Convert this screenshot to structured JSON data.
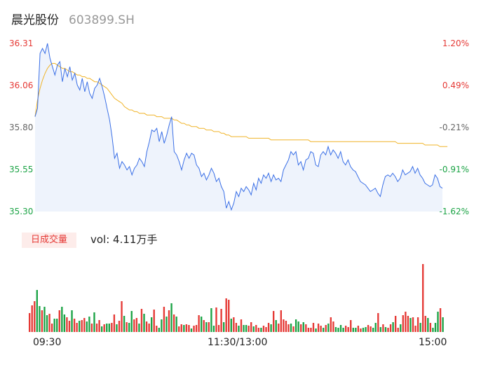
{
  "header": {
    "name": "晨光股份",
    "code": "603899.SH"
  },
  "volume_panel": {
    "tag": "日成交量",
    "label_prefix": "vol: ",
    "value": "4.11万手"
  },
  "colors": {
    "price": "#3a6fe6",
    "avg": "#f0b429",
    "up": "#e53935",
    "down": "#1ba345",
    "axis_up": "#e53935",
    "axis_down": "#1ba345",
    "axis_mid": "#666666"
  },
  "chart_data": {
    "type": "line",
    "x_ticks": [
      "09:30",
      "11:30/13:00",
      "15:00"
    ],
    "price_axis": {
      "ticks": [
        "36.31",
        "36.06",
        "35.80",
        "35.55",
        "35.30"
      ],
      "ylim": [
        35.3,
        36.31
      ]
    },
    "pct_axis": {
      "ticks": [
        "1.20%",
        "0.49%",
        "-0.21%",
        "-0.91%",
        "-1.62%"
      ]
    },
    "series": [
      {
        "values": [
          35.87,
          35.92,
          36.25,
          36.28,
          36.25,
          36.31,
          36.22,
          36.17,
          36.12,
          36.18,
          36.2,
          36.08,
          36.16,
          36.11,
          36.17,
          36.09,
          36.13,
          36.06,
          36.03,
          36.1,
          36.02,
          36.08,
          36.01,
          35.98,
          36.04,
          36.06,
          36.1,
          36.05,
          35.99,
          35.92,
          35.85,
          35.75,
          35.62,
          35.65,
          35.56,
          35.6,
          35.58,
          35.55,
          35.57,
          35.52,
          35.56,
          35.58,
          35.62,
          35.6,
          35.57,
          35.66,
          35.72,
          35.79,
          35.78,
          35.8,
          35.72,
          35.78,
          35.71,
          35.76,
          35.82,
          35.87,
          35.66,
          35.64,
          35.6,
          35.55,
          35.61,
          35.65,
          35.62,
          35.65,
          35.64,
          35.58,
          35.56,
          35.51,
          35.53,
          35.49,
          35.52,
          35.56,
          35.53,
          35.48,
          35.5,
          35.45,
          35.42,
          35.32,
          35.36,
          35.31,
          35.35,
          35.42,
          35.39,
          35.44,
          35.42,
          35.45,
          35.43,
          35.4,
          35.47,
          35.43,
          35.5,
          35.47,
          35.52,
          35.5,
          35.53,
          35.48,
          35.52,
          35.49,
          35.5,
          35.48,
          35.55,
          35.58,
          35.61,
          35.66,
          35.64,
          35.66,
          35.58,
          35.6,
          35.55,
          35.61,
          35.62,
          35.66,
          35.65,
          35.58,
          35.57,
          35.64,
          35.66,
          35.64,
          35.69,
          35.64,
          35.67,
          35.65,
          35.62,
          35.66,
          35.6,
          35.58,
          35.61,
          35.57,
          35.55,
          35.54,
          35.51,
          35.48,
          35.47,
          35.46,
          35.44,
          35.42,
          35.43,
          35.44,
          35.41,
          35.39,
          35.46,
          35.51,
          35.52,
          35.51,
          35.53,
          35.51,
          35.48,
          35.5,
          35.55,
          35.52,
          35.53,
          35.54,
          35.57,
          35.53,
          35.56,
          35.52,
          35.5,
          35.47,
          35.46,
          35.45,
          35.46,
          35.52,
          35.5,
          35.45,
          35.44
        ],
        "ylim": [
          35.3,
          36.31
        ]
      },
      {
        "values": [
          35.87,
          35.97,
          36.04,
          36.09,
          36.13,
          36.16,
          36.18,
          36.19,
          36.19,
          36.18,
          36.17,
          36.16,
          36.16,
          36.15,
          36.14,
          36.14,
          36.13,
          36.12,
          36.12,
          36.11,
          36.11,
          36.1,
          36.1,
          36.09,
          36.08,
          36.08,
          36.07,
          36.06,
          36.05,
          36.04,
          36.02,
          36.0,
          35.98,
          35.97,
          35.96,
          35.95,
          35.93,
          35.92,
          35.91,
          35.91,
          35.9,
          35.9,
          35.89,
          35.89,
          35.89,
          35.88,
          35.88,
          35.88,
          35.88,
          35.87,
          35.87,
          35.87,
          35.86,
          35.86,
          35.86,
          35.86,
          35.85,
          35.85,
          35.84,
          35.83,
          35.83,
          35.82,
          35.82,
          35.81,
          35.81,
          35.81,
          35.8,
          35.8,
          35.8,
          35.79,
          35.79,
          35.79,
          35.78,
          35.78,
          35.78,
          35.77,
          35.77,
          35.76,
          35.76,
          35.75,
          35.75,
          35.75,
          35.75,
          35.75,
          35.75,
          35.75,
          35.74,
          35.74,
          35.74,
          35.74,
          35.74,
          35.74,
          35.74,
          35.74,
          35.74,
          35.73,
          35.73,
          35.73,
          35.73,
          35.73,
          35.73,
          35.73,
          35.73,
          35.73,
          35.73,
          35.73,
          35.73,
          35.73,
          35.73,
          35.73,
          35.73,
          35.72,
          35.72,
          35.72,
          35.72,
          35.72,
          35.72,
          35.72,
          35.72,
          35.72,
          35.72,
          35.72,
          35.72,
          35.72,
          35.72,
          35.72,
          35.72,
          35.72,
          35.72,
          35.72,
          35.72,
          35.72,
          35.72,
          35.72,
          35.72,
          35.72,
          35.72,
          35.72,
          35.72,
          35.72,
          35.72,
          35.72,
          35.72,
          35.72,
          35.72,
          35.72,
          35.71,
          35.71,
          35.71,
          35.71,
          35.71,
          35.71,
          35.71,
          35.71,
          35.71,
          35.71,
          35.71,
          35.7,
          35.7,
          35.7,
          35.7,
          35.7,
          35.7,
          35.69,
          35.69,
          35.69,
          35.69
        ],
        "ylim": [
          35.3,
          36.31
        ]
      }
    ],
    "volume": {
      "values": [
        27,
        38,
        44,
        60,
        37,
        31,
        36,
        24,
        26,
        12,
        19,
        19,
        31,
        36,
        25,
        21,
        16,
        31,
        19,
        13,
        16,
        17,
        20,
        15,
        22,
        12,
        28,
        12,
        17,
        8,
        11,
        12,
        12,
        13,
        25,
        11,
        16,
        44,
        23,
        14,
        13,
        30,
        18,
        20,
        12,
        33,
        26,
        15,
        12,
        21,
        32,
        9,
        6,
        18,
        36,
        22,
        31,
        41,
        25,
        22,
        8,
        11,
        10,
        11,
        10,
        5,
        9,
        10,
        24,
        22,
        17,
        14,
        14,
        34,
        9,
        35,
        10,
        33,
        14,
        48,
        46,
        19,
        21,
        13,
        9,
        18,
        10,
        10,
        9,
        14,
        8,
        10,
        6,
        6,
        9,
        7,
        13,
        11,
        30,
        17,
        12,
        31,
        18,
        16,
        11,
        12,
        8,
        18,
        15,
        11,
        14,
        11,
        6,
        6,
        13,
        5,
        12,
        9,
        6,
        10,
        12,
        21,
        15,
        7,
        6,
        10,
        6,
        9,
        7,
        17,
        6,
        6,
        9,
        5,
        6,
        7,
        10,
        8,
        6,
        13,
        27,
        7,
        11,
        7,
        6,
        11,
        14,
        23,
        6,
        11,
        24,
        29,
        23,
        20,
        21,
        9,
        21,
        13,
        97,
        23,
        20,
        13,
        6,
        13,
        29,
        34,
        21
      ],
      "up": [
        1,
        1,
        1,
        0,
        0,
        1,
        0,
        0,
        1,
        1,
        0,
        0,
        1,
        0,
        0,
        1,
        1,
        0,
        1,
        1,
        0,
        1,
        1,
        0,
        0,
        1,
        0,
        1,
        1,
        0,
        1,
        0,
        0,
        1,
        1,
        0,
        1,
        1,
        0,
        1,
        0,
        0,
        1,
        1,
        0,
        1,
        0,
        1,
        1,
        0,
        1,
        1,
        0,
        0,
        1,
        0,
        1,
        0,
        1,
        0,
        1,
        1,
        0,
        1,
        1,
        0,
        1,
        1,
        1,
        0,
        1,
        0,
        1,
        0,
        0,
        1,
        1,
        1,
        0,
        1,
        1,
        0,
        1,
        1,
        0,
        1,
        0,
        0,
        1,
        1,
        0,
        1,
        1,
        0,
        1,
        1,
        1,
        0,
        1,
        0,
        1,
        1,
        1,
        1,
        1,
        0,
        1,
        0,
        0,
        1,
        0,
        1,
        1,
        1,
        1,
        0,
        1,
        1,
        0,
        1,
        0,
        1,
        1,
        0,
        0,
        0,
        0,
        1,
        1,
        1,
        0,
        0,
        1,
        1,
        0,
        0,
        1,
        1,
        0,
        0,
        1,
        0,
        1,
        0,
        1,
        1,
        0,
        1,
        1,
        0,
        1,
        1,
        1,
        0,
        1,
        1,
        1,
        0,
        1,
        1,
        0,
        1,
        0,
        0,
        0,
        1
      ]
    }
  }
}
